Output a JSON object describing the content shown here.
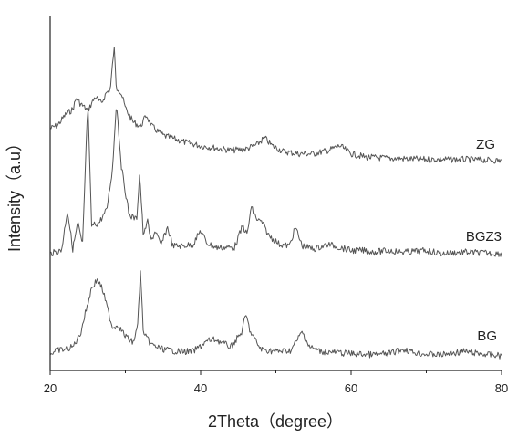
{
  "chart_data": {
    "type": "line",
    "title": "",
    "xlabel": "2Theta（degree）",
    "ylabel": "Intensity（a.u）",
    "xlim": [
      20,
      80
    ],
    "x_ticks": [
      "20",
      "40",
      "60",
      "80"
    ],
    "y_ticks": [],
    "grid": false,
    "legend": "none",
    "line_color": "#555555",
    "series": [
      {
        "name": "ZG",
        "x": [
          20,
          21,
          22,
          23,
          23.5,
          24,
          25,
          26,
          26.8,
          27.5,
          28,
          28.5,
          28.8,
          29,
          29.5,
          30,
          31,
          32,
          32.8,
          33.5,
          35,
          38,
          40,
          42,
          44,
          46,
          47.5,
          48.5,
          49.5,
          51,
          53,
          55,
          57,
          58.5,
          60,
          62,
          65,
          70,
          75,
          80
        ],
        "y": [
          0.28,
          0.31,
          0.4,
          0.45,
          0.55,
          0.5,
          0.44,
          0.56,
          0.5,
          0.6,
          0.62,
          1.0,
          0.63,
          0.64,
          0.58,
          0.46,
          0.34,
          0.3,
          0.4,
          0.3,
          0.22,
          0.16,
          0.13,
          0.11,
          0.09,
          0.1,
          0.14,
          0.2,
          0.13,
          0.08,
          0.06,
          0.06,
          0.09,
          0.13,
          0.06,
          0.03,
          0.02,
          0.01,
          0.01,
          0.0
        ]
      },
      {
        "name": "BGZ3",
        "x": [
          20,
          21.5,
          22.3,
          23,
          23.7,
          24.3,
          25,
          25.5,
          26.5,
          27.5,
          28.3,
          28.8,
          29.5,
          30.5,
          31.5,
          31.9,
          32.4,
          32.9,
          33.4,
          34,
          34.7,
          35.6,
          36.3,
          37.5,
          39,
          40,
          40.8,
          42,
          43,
          44.5,
          45.6,
          46.2,
          46.7,
          47.5,
          48.2,
          49,
          50.5,
          51.8,
          52.6,
          53.5,
          55,
          57,
          58.5,
          60,
          62,
          63,
          65,
          67,
          70,
          72,
          75,
          80
        ],
        "y": [
          0.0,
          0.02,
          0.28,
          0.03,
          0.2,
          0.04,
          0.98,
          0.18,
          0.2,
          0.28,
          0.55,
          0.98,
          0.55,
          0.25,
          0.22,
          0.52,
          0.1,
          0.22,
          0.08,
          0.15,
          0.05,
          0.17,
          0.05,
          0.05,
          0.06,
          0.15,
          0.07,
          0.04,
          0.04,
          0.04,
          0.18,
          0.12,
          0.3,
          0.22,
          0.2,
          0.12,
          0.06,
          0.05,
          0.17,
          0.05,
          0.03,
          0.06,
          0.04,
          0.02,
          0.02,
          0.01,
          0.02,
          0.01,
          0.02,
          0.0,
          0.01,
          0.0
        ]
      },
      {
        "name": "BG",
        "x": [
          20,
          21,
          22,
          23,
          24,
          25,
          25.5,
          26.3,
          27,
          27.8,
          28.3,
          29,
          30,
          31,
          31.6,
          32,
          32.4,
          33.5,
          35,
          37,
          39,
          41,
          42,
          44,
          45.5,
          46,
          46.6,
          48,
          50,
          52,
          53.5,
          54.5,
          56,
          58,
          60,
          63,
          65,
          67,
          69,
          72,
          75,
          77,
          80
        ],
        "y": [
          0.02,
          0.05,
          0.06,
          0.08,
          0.2,
          0.48,
          0.62,
          0.7,
          0.6,
          0.38,
          0.26,
          0.28,
          0.18,
          0.12,
          0.25,
          0.76,
          0.2,
          0.1,
          0.06,
          0.04,
          0.04,
          0.14,
          0.15,
          0.08,
          0.22,
          0.38,
          0.22,
          0.06,
          0.04,
          0.05,
          0.22,
          0.08,
          0.04,
          0.03,
          0.02,
          0.01,
          0.02,
          0.06,
          0.02,
          0.01,
          0.04,
          0.02,
          0.0
        ]
      }
    ]
  }
}
